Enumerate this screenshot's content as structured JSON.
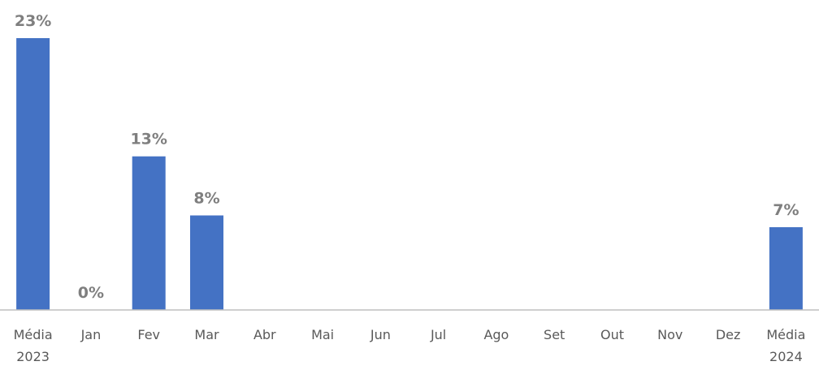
{
  "chart_data": {
    "type": "bar",
    "categories": [
      [
        "Média",
        "2023"
      ],
      [
        "Jan"
      ],
      [
        "Fev"
      ],
      [
        "Mar"
      ],
      [
        "Abr"
      ],
      [
        "Mai"
      ],
      [
        "Jun"
      ],
      [
        "Jul"
      ],
      [
        "Ago"
      ],
      [
        "Set"
      ],
      [
        "Out"
      ],
      [
        "Nov"
      ],
      [
        "Dez"
      ],
      [
        "Média",
        "2024"
      ]
    ],
    "values": [
      23,
      0,
      13,
      8,
      null,
      null,
      null,
      null,
      null,
      null,
      null,
      null,
      null,
      7
    ],
    "value_labels": [
      "23%",
      "0%",
      "13%",
      "8%",
      "",
      "",
      "",
      "",
      "",
      "",
      "",
      "",
      "",
      "7%"
    ],
    "unit": "%",
    "ylim": [
      0,
      23
    ],
    "colors": {
      "bar": "#4472C4",
      "label": "#7F7F7F",
      "axis": "#BFBFBF",
      "category": "#595959"
    },
    "grid": false,
    "legend": "none"
  }
}
